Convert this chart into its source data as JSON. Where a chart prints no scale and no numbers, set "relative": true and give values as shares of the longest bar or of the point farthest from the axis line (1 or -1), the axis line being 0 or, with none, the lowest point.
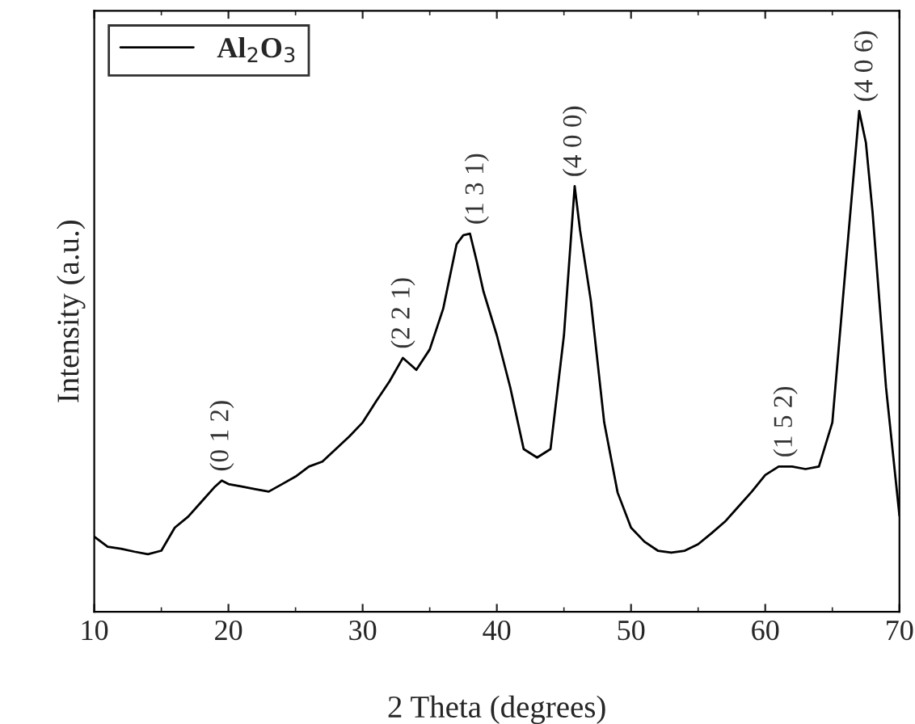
{
  "chart_data": {
    "type": "line",
    "relative": true,
    "xlabel": "2 Theta (degrees)",
    "ylabel": "Intensity (a.u.)",
    "x": [
      10,
      11,
      12,
      13,
      14,
      15,
      16,
      17,
      18,
      19,
      19.5,
      20,
      21,
      22,
      23,
      24,
      25,
      26,
      27,
      28,
      29,
      30,
      31,
      32,
      33,
      34,
      35,
      36,
      37,
      37.5,
      38,
      38.5,
      39,
      40,
      41,
      42,
      43,
      44,
      45,
      45.8,
      46.2,
      47,
      48,
      49,
      50,
      51,
      52,
      53,
      54,
      55,
      56,
      57,
      58,
      59,
      60,
      61,
      62,
      63,
      64,
      65,
      66,
      67,
      67.5,
      68,
      69,
      70
    ],
    "series": [
      {
        "name": "Al$_{2}$O$_{3}$",
        "color": "#000000",
        "values": [
          0.15,
          0.13,
          0.126,
          0.12,
          0.115,
          0.122,
          0.168,
          0.19,
          0.22,
          0.25,
          0.262,
          0.255,
          0.25,
          0.245,
          0.24,
          0.255,
          0.27,
          0.29,
          0.3,
          0.325,
          0.35,
          0.378,
          0.42,
          0.46,
          0.507,
          0.483,
          0.524,
          0.605,
          0.734,
          0.752,
          0.755,
          0.7,
          0.64,
          0.552,
          0.448,
          0.325,
          0.308,
          0.325,
          0.552,
          0.85,
          0.762,
          0.622,
          0.378,
          0.238,
          0.168,
          0.14,
          0.122,
          0.118,
          0.122,
          0.135,
          0.157,
          0.18,
          0.21,
          0.24,
          0.273,
          0.29,
          0.29,
          0.285,
          0.29,
          0.378,
          0.692,
          1.0,
          0.937,
          0.797,
          0.448,
          0.192
        ]
      }
    ],
    "xlim": [
      10,
      70
    ],
    "xticks": [
      10,
      20,
      30,
      40,
      50,
      60,
      70
    ],
    "annotations": [
      {
        "text": "(0 1 2)",
        "x": 19.5,
        "y": 0.262
      },
      {
        "text": "(2 2 1)",
        "x": 33,
        "y": 0.507
      },
      {
        "text": "(1 3 1)",
        "x": 38.5,
        "y": 0.755
      },
      {
        "text": "(4 0 0)",
        "x": 45.8,
        "y": 0.85
      },
      {
        "text": "(1 5 2)",
        "x": 61.5,
        "y": 0.29
      },
      {
        "text": "(4 0 6)",
        "x": 67.5,
        "y": 1.0
      }
    ],
    "legend": "top left",
    "line_style": "solid",
    "marker": "none",
    "grid": false
  }
}
